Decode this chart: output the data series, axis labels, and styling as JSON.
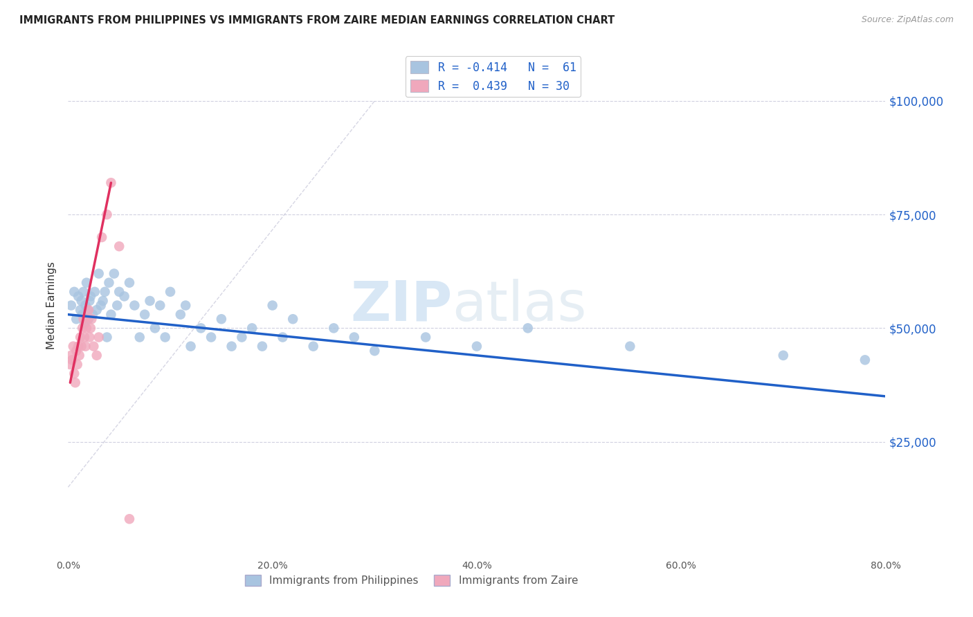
{
  "title": "IMMIGRANTS FROM PHILIPPINES VS IMMIGRANTS FROM ZAIRE MEDIAN EARNINGS CORRELATION CHART",
  "source": "Source: ZipAtlas.com",
  "ylabel": "Median Earnings",
  "y_ticks": [
    25000,
    50000,
    75000,
    100000
  ],
  "y_tick_labels": [
    "$25,000",
    "$50,000",
    "$75,000",
    "$100,000"
  ],
  "xlim": [
    0.0,
    0.8
  ],
  "ylim": [
    0,
    110000
  ],
  "watermark_zip": "ZIP",
  "watermark_atlas": "atlas",
  "color_blue": "#a8c4e0",
  "color_pink": "#f0a8bc",
  "line_blue": "#2060c8",
  "line_pink": "#e03060",
  "line_dashed_color": "#ccccdd",
  "philippines_x": [
    0.003,
    0.006,
    0.008,
    0.01,
    0.012,
    0.013,
    0.014,
    0.015,
    0.016,
    0.017,
    0.018,
    0.019,
    0.02,
    0.021,
    0.022,
    0.024,
    0.026,
    0.028,
    0.03,
    0.032,
    0.034,
    0.036,
    0.038,
    0.04,
    0.042,
    0.045,
    0.048,
    0.05,
    0.055,
    0.06,
    0.065,
    0.07,
    0.075,
    0.08,
    0.085,
    0.09,
    0.095,
    0.1,
    0.11,
    0.115,
    0.12,
    0.13,
    0.14,
    0.15,
    0.16,
    0.17,
    0.18,
    0.19,
    0.2,
    0.21,
    0.22,
    0.24,
    0.26,
    0.28,
    0.3,
    0.35,
    0.4,
    0.45,
    0.55,
    0.7,
    0.78
  ],
  "philippines_y": [
    55000,
    58000,
    52000,
    57000,
    54000,
    56000,
    53000,
    58000,
    51000,
    55000,
    60000,
    54000,
    52000,
    56000,
    57000,
    53000,
    58000,
    54000,
    62000,
    55000,
    56000,
    58000,
    48000,
    60000,
    53000,
    62000,
    55000,
    58000,
    57000,
    60000,
    55000,
    48000,
    53000,
    56000,
    50000,
    55000,
    48000,
    58000,
    53000,
    55000,
    46000,
    50000,
    48000,
    52000,
    46000,
    48000,
    50000,
    46000,
    55000,
    48000,
    52000,
    46000,
    50000,
    48000,
    45000,
    48000,
    46000,
    50000,
    46000,
    44000,
    43000
  ],
  "zaire_x": [
    0.002,
    0.003,
    0.004,
    0.005,
    0.006,
    0.007,
    0.008,
    0.009,
    0.01,
    0.011,
    0.012,
    0.013,
    0.014,
    0.015,
    0.016,
    0.017,
    0.018,
    0.019,
    0.02,
    0.021,
    0.022,
    0.023,
    0.025,
    0.028,
    0.03,
    0.033,
    0.038,
    0.042,
    0.05,
    0.06
  ],
  "zaire_y": [
    42000,
    44000,
    43000,
    46000,
    40000,
    38000,
    45000,
    42000,
    46000,
    44000,
    48000,
    46000,
    50000,
    52000,
    48000,
    46000,
    50000,
    52000,
    54000,
    48000,
    50000,
    52000,
    46000,
    44000,
    48000,
    70000,
    75000,
    82000,
    68000,
    8000
  ],
  "blue_line_x": [
    0.0,
    0.8
  ],
  "blue_line_y": [
    53000,
    35000
  ],
  "pink_line_x": [
    0.002,
    0.042
  ],
  "pink_line_y": [
    38000,
    82000
  ],
  "dash_line_x": [
    0.0,
    0.3
  ],
  "dash_line_y": [
    15000,
    100000
  ]
}
